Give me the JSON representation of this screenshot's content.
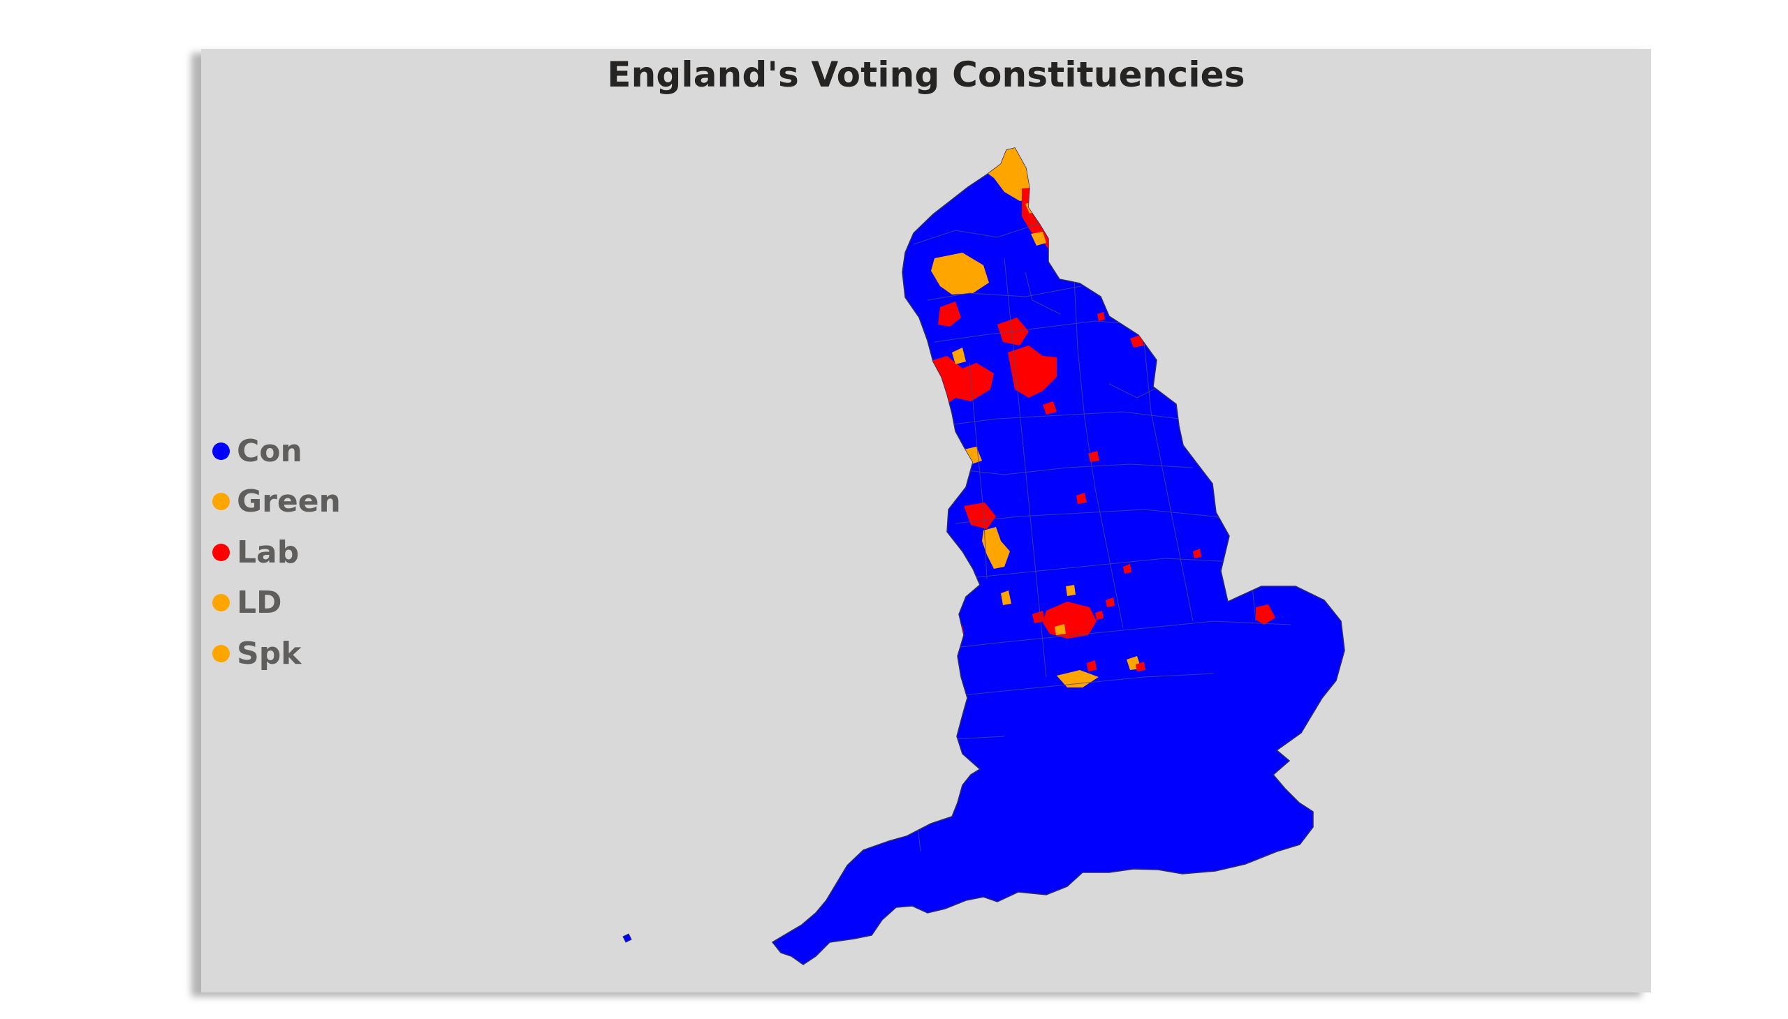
{
  "title": "England's Voting Constituencies",
  "colors": {
    "Con": "#0000ff",
    "Green": "#ffa500",
    "Lab": "#ff0000",
    "LD": "#ffa500",
    "Spk": "#ffa500",
    "card_background": "#d9d9d9",
    "boundary_lines": "#5a5a8c"
  },
  "legend": [
    {
      "label": "Con",
      "color": "#0000ff"
    },
    {
      "label": "Green",
      "color": "#ffa500"
    },
    {
      "label": "Lab",
      "color": "#ff0000"
    },
    {
      "label": "LD",
      "color": "#ffa500"
    },
    {
      "label": "Spk",
      "color": "#ffa500"
    }
  ]
}
